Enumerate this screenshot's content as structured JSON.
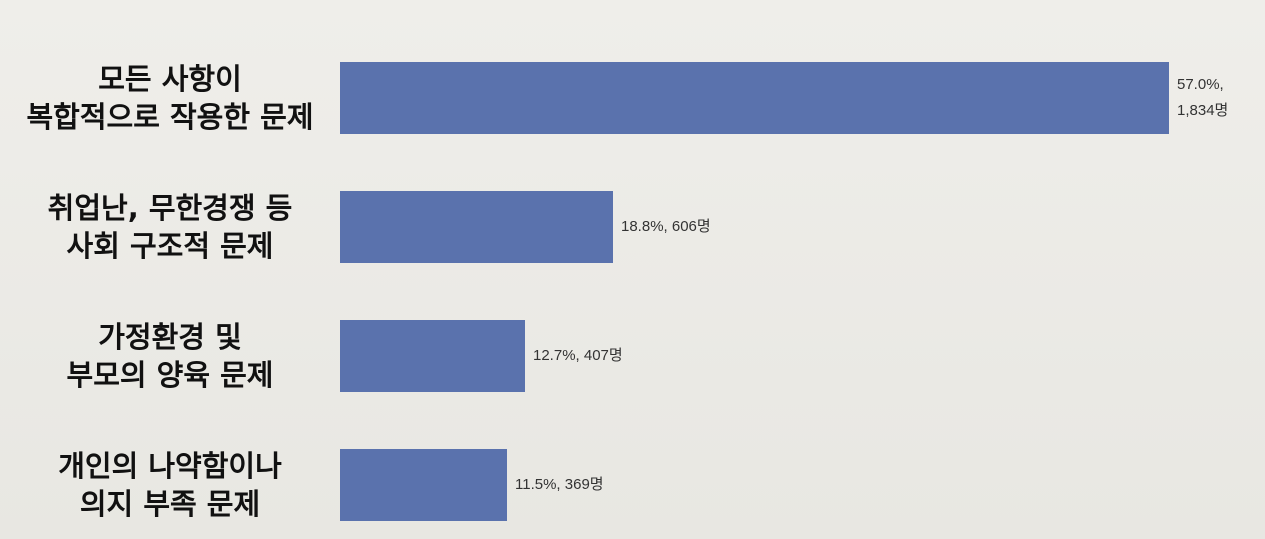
{
  "chart_data": {
    "type": "bar",
    "orientation": "horizontal",
    "categories": [
      [
        "모든 사항이",
        "복합적으로 작용한 문제"
      ],
      [
        "취업난, 무한경쟁 등",
        "사회 구조적 문제"
      ],
      [
        "가정환경 및",
        "부모의 양육 문제"
      ],
      [
        "개인의 나약함이나",
        "의지 부족 문제"
      ]
    ],
    "values": [
      57.0,
      18.8,
      12.7,
      11.5
    ],
    "counts": [
      1834,
      606,
      407,
      369
    ],
    "data_labels": [
      [
        "57.0%,",
        "1,834명"
      ],
      [
        "18.8%,",
        "606명"
      ],
      [
        "12.7%,",
        "407명"
      ],
      [
        "11.5%,",
        "369명"
      ]
    ],
    "title": "",
    "xlabel": "",
    "ylabel": "",
    "xlim": [
      0,
      57.0
    ],
    "grid": false,
    "legend": "none",
    "bar_color": "#5a72ad"
  }
}
